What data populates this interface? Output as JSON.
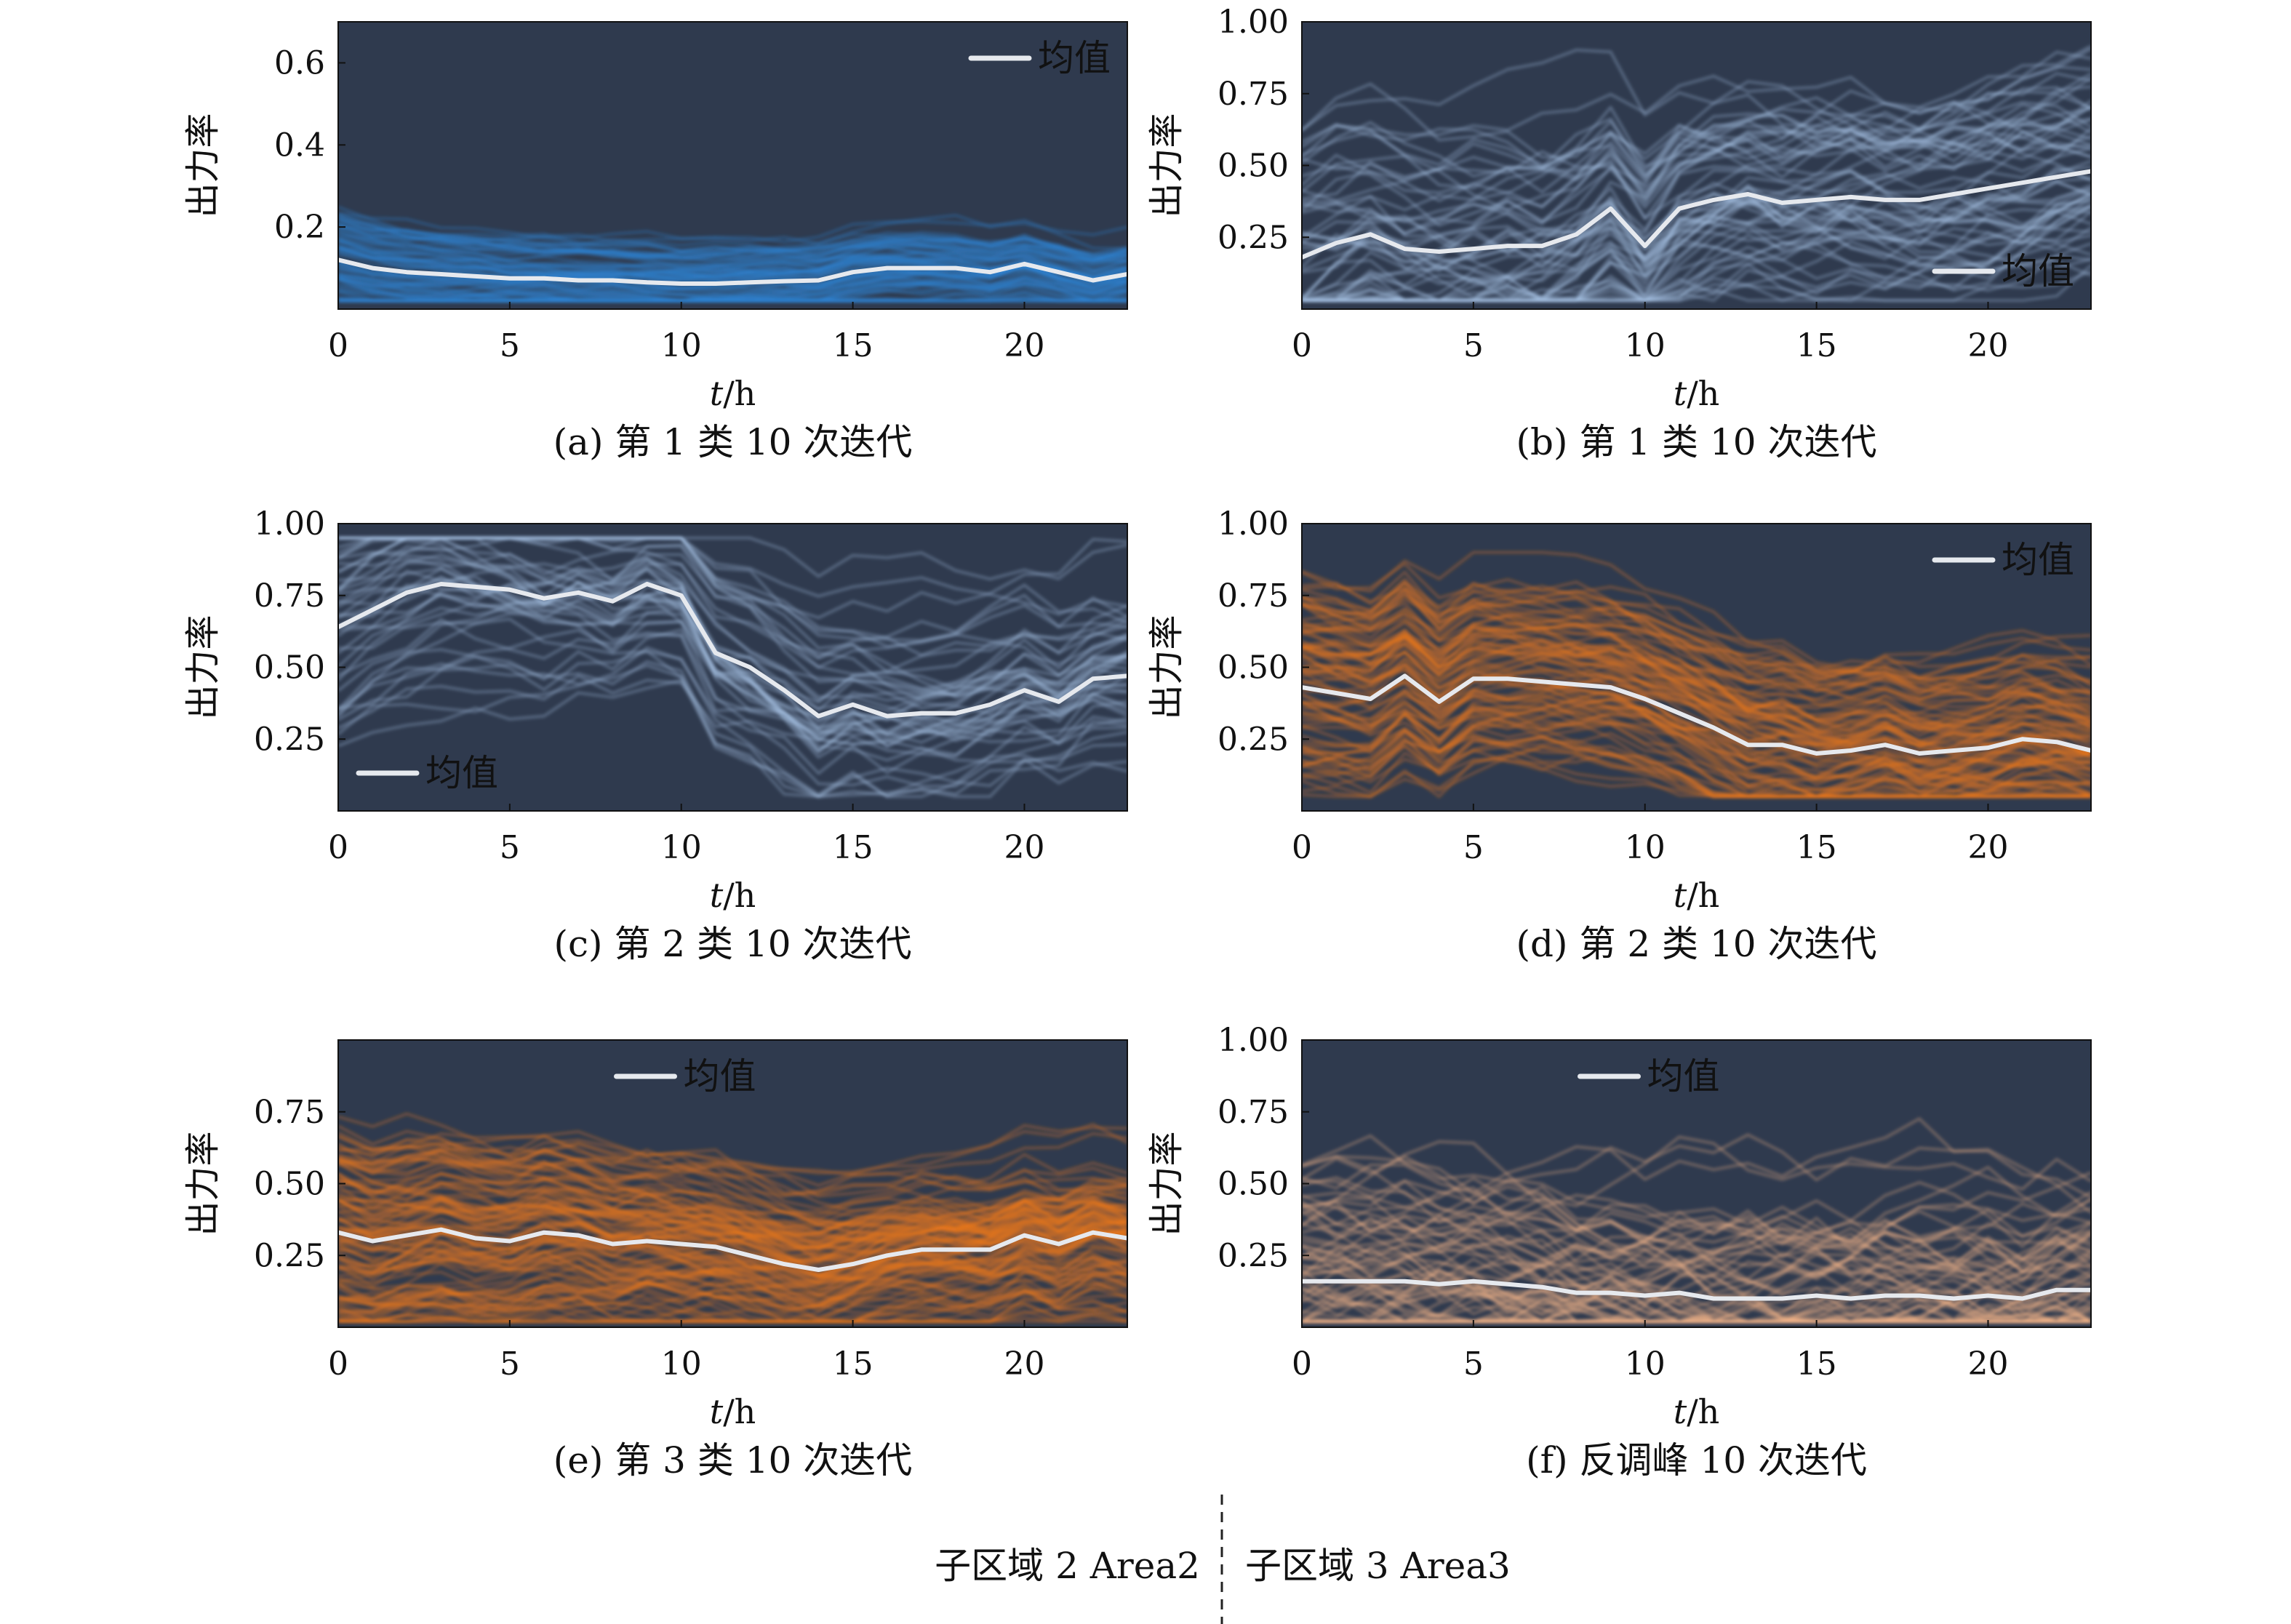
{
  "theme": {
    "plot_bg": "#2f3a4e",
    "mean_line": "#e6e9ee",
    "palettes": {
      "blue": "#2f86d6",
      "lightblue": "#a9c4e6",
      "orange": "#f07a1c",
      "peach": "#f2b58a"
    }
  },
  "figure": {
    "footer_left": "子区域 2 Area2",
    "footer_right": "子区域 3 Area3"
  },
  "chart_data": [
    {
      "id": "a",
      "type": "line",
      "caption": "(a) 第 1 类 10 次迭代",
      "xlabel_italic": "t",
      "xlabel_unit": "/h",
      "ylabel": "出力率",
      "xlim": [
        0,
        23
      ],
      "ylim": [
        0,
        0.7
      ],
      "xticks": [
        {
          "v": 0,
          "t": "0"
        },
        {
          "v": 5,
          "t": "5"
        },
        {
          "v": 10,
          "t": "10"
        },
        {
          "v": 15,
          "t": "15"
        },
        {
          "v": 20,
          "t": "20"
        }
      ],
      "yticks": [
        {
          "v": 0.2,
          "t": "0.2"
        },
        {
          "v": 0.4,
          "t": "0.4"
        },
        {
          "v": 0.6,
          "t": "0.6"
        }
      ],
      "legend": "均值",
      "legend_pos": "top-right",
      "palette": "blue",
      "band": [
        0.02,
        0.3
      ],
      "n_curves": 70,
      "volatility": 0.015,
      "mean": [
        0.12,
        0.1,
        0.09,
        0.085,
        0.08,
        0.075,
        0.075,
        0.07,
        0.07,
        0.065,
        0.062,
        0.062,
        0.065,
        0.068,
        0.07,
        0.09,
        0.1,
        0.1,
        0.1,
        0.09,
        0.11,
        0.09,
        0.07,
        0.085
      ]
    },
    {
      "id": "b",
      "type": "line",
      "caption": "(b) 第 1 类 10 次迭代",
      "xlabel_italic": "t",
      "xlabel_unit": "/h",
      "ylabel": "出力率",
      "xlim": [
        0,
        23
      ],
      "ylim": [
        0,
        1.0
      ],
      "xticks": [
        {
          "v": 0,
          "t": "0"
        },
        {
          "v": 5,
          "t": "5"
        },
        {
          "v": 10,
          "t": "10"
        },
        {
          "v": 15,
          "t": "15"
        },
        {
          "v": 20,
          "t": "20"
        }
      ],
      "yticks": [
        {
          "v": 0.25,
          "t": "0.25"
        },
        {
          "v": 0.5,
          "t": "0.50"
        },
        {
          "v": 0.75,
          "t": "0.75"
        },
        {
          "v": 1.0,
          "t": "1.00"
        }
      ],
      "legend": "均值",
      "legend_pos": "bottom-right",
      "palette": "lightblue",
      "band": [
        0.03,
        0.97
      ],
      "n_curves": 60,
      "volatility": 0.09,
      "mean": [
        0.18,
        0.23,
        0.26,
        0.21,
        0.2,
        0.21,
        0.22,
        0.22,
        0.26,
        0.35,
        0.22,
        0.35,
        0.38,
        0.4,
        0.37,
        0.38,
        0.39,
        0.38,
        0.38,
        0.4,
        0.42,
        0.44,
        0.46,
        0.48
      ]
    },
    {
      "id": "c",
      "type": "line",
      "caption": "(c) 第 2 类 10 次迭代",
      "xlabel_italic": "t",
      "xlabel_unit": "/h",
      "ylabel": "出力率",
      "xlim": [
        0,
        23
      ],
      "ylim": [
        0,
        1.0
      ],
      "xticks": [
        {
          "v": 0,
          "t": "0"
        },
        {
          "v": 5,
          "t": "5"
        },
        {
          "v": 10,
          "t": "10"
        },
        {
          "v": 15,
          "t": "15"
        },
        {
          "v": 20,
          "t": "20"
        }
      ],
      "yticks": [
        {
          "v": 0.25,
          "t": "0.25"
        },
        {
          "v": 0.5,
          "t": "0.50"
        },
        {
          "v": 0.75,
          "t": "0.75"
        },
        {
          "v": 1.0,
          "t": "1.00"
        }
      ],
      "legend": "均值",
      "legend_pos": "bottom-left",
      "palette": "lightblue",
      "band": [
        0.05,
        0.95
      ],
      "n_curves": 45,
      "volatility": 0.07,
      "mean": [
        0.64,
        0.7,
        0.76,
        0.79,
        0.78,
        0.77,
        0.74,
        0.76,
        0.73,
        0.79,
        0.75,
        0.55,
        0.5,
        0.42,
        0.33,
        0.37,
        0.33,
        0.34,
        0.34,
        0.37,
        0.42,
        0.38,
        0.46,
        0.47
      ]
    },
    {
      "id": "d",
      "type": "line",
      "caption": "(d) 第 2 类 10 次迭代",
      "xlabel_italic": "t",
      "xlabel_unit": "/h",
      "ylabel": "出力率",
      "xlim": [
        0,
        23
      ],
      "ylim": [
        0,
        1.0
      ],
      "xticks": [
        {
          "v": 0,
          "t": "0"
        },
        {
          "v": 5,
          "t": "5"
        },
        {
          "v": 10,
          "t": "10"
        },
        {
          "v": 15,
          "t": "15"
        },
        {
          "v": 20,
          "t": "20"
        }
      ],
      "yticks": [
        {
          "v": 0.25,
          "t": "0.25"
        },
        {
          "v": 0.5,
          "t": "0.50"
        },
        {
          "v": 0.75,
          "t": "0.75"
        },
        {
          "v": 1.0,
          "t": "1.00"
        }
      ],
      "legend": "均值",
      "legend_pos": "top-right",
      "palette": "orange",
      "band": [
        0.05,
        0.9
      ],
      "n_curves": 90,
      "volatility": 0.05,
      "mean": [
        0.43,
        0.41,
        0.39,
        0.47,
        0.38,
        0.46,
        0.46,
        0.45,
        0.44,
        0.43,
        0.39,
        0.34,
        0.29,
        0.23,
        0.23,
        0.2,
        0.21,
        0.23,
        0.2,
        0.21,
        0.22,
        0.25,
        0.24,
        0.21
      ]
    },
    {
      "id": "e",
      "type": "line",
      "caption": "(e) 第 3 类 10 次迭代",
      "xlabel_italic": "t",
      "xlabel_unit": "/h",
      "ylabel": "出力率",
      "xlim": [
        0,
        23
      ],
      "ylim": [
        0,
        1.0
      ],
      "xticks": [
        {
          "v": 0,
          "t": "0"
        },
        {
          "v": 5,
          "t": "5"
        },
        {
          "v": 10,
          "t": "10"
        },
        {
          "v": 15,
          "t": "15"
        },
        {
          "v": 20,
          "t": "20"
        }
      ],
      "yticks": [
        {
          "v": 0.25,
          "t": "0.25"
        },
        {
          "v": 0.5,
          "t": "0.50"
        },
        {
          "v": 0.75,
          "t": "0.75"
        }
      ],
      "legend": "均值",
      "legend_pos": "top-center",
      "palette": "orange",
      "band": [
        0.02,
        0.85
      ],
      "n_curves": 110,
      "volatility": 0.05,
      "mean": [
        0.33,
        0.3,
        0.32,
        0.34,
        0.31,
        0.3,
        0.33,
        0.32,
        0.29,
        0.3,
        0.29,
        0.28,
        0.25,
        0.22,
        0.2,
        0.22,
        0.25,
        0.27,
        0.27,
        0.27,
        0.32,
        0.29,
        0.33,
        0.31
      ]
    },
    {
      "id": "f",
      "type": "line",
      "caption": "(f) 反调峰 10 次迭代",
      "xlabel_italic": "t",
      "xlabel_unit": "/h",
      "ylabel": "出力率",
      "xlim": [
        0,
        23
      ],
      "ylim": [
        0,
        1.0
      ],
      "xticks": [
        {
          "v": 0,
          "t": "0"
        },
        {
          "v": 5,
          "t": "5"
        },
        {
          "v": 10,
          "t": "10"
        },
        {
          "v": 15,
          "t": "15"
        },
        {
          "v": 20,
          "t": "20"
        }
      ],
      "yticks": [
        {
          "v": 0.25,
          "t": "0.25"
        },
        {
          "v": 0.5,
          "t": "0.50"
        },
        {
          "v": 0.75,
          "t": "0.75"
        },
        {
          "v": 1.0,
          "t": "1.00"
        }
      ],
      "legend": "均值",
      "legend_pos": "top-center",
      "palette": "peach",
      "band": [
        0.02,
        0.95
      ],
      "n_curves": 70,
      "volatility": 0.1,
      "mean": [
        0.16,
        0.16,
        0.16,
        0.16,
        0.15,
        0.16,
        0.15,
        0.14,
        0.12,
        0.12,
        0.11,
        0.12,
        0.1,
        0.1,
        0.1,
        0.11,
        0.1,
        0.11,
        0.11,
        0.1,
        0.11,
        0.1,
        0.13,
        0.13
      ]
    }
  ]
}
